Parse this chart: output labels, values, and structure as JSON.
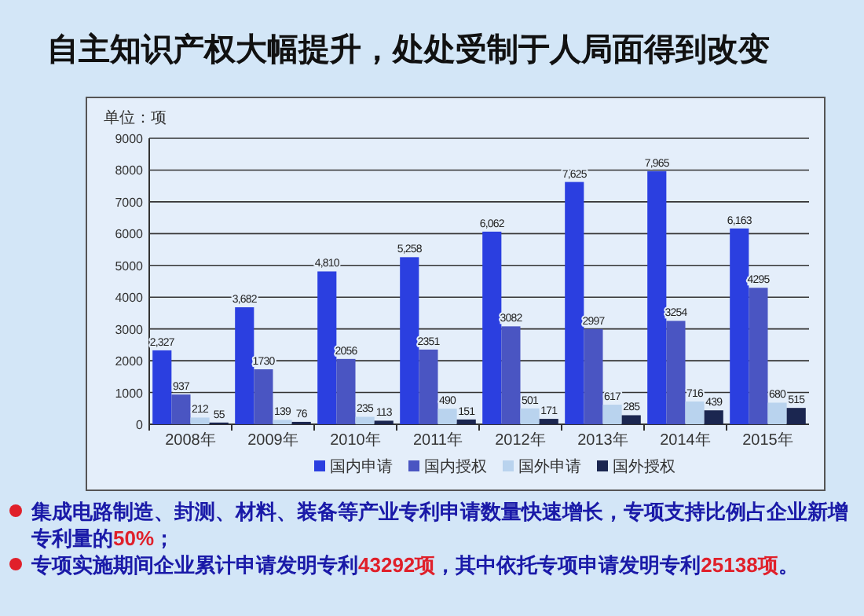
{
  "chart_data": {
    "type": "bar",
    "title": "自主知识产权大幅提升，处处受制于人局面得到改变",
    "categories": [
      "2008年",
      "2009年",
      "2010年",
      "2011年",
      "2012年",
      "2013年",
      "2014年",
      "2015年"
    ],
    "series": [
      {
        "name": "国内申请",
        "color": "#2b3fe0",
        "values": [
          2327,
          3682,
          4810,
          5258,
          6062,
          7625,
          7965,
          6163
        ],
        "value_labels": [
          "2,327",
          "3,682",
          "4,810",
          "5,258",
          "6,062",
          "7,625",
          "7,965",
          "6,163"
        ]
      },
      {
        "name": "国内授权",
        "color": "#4a55c2",
        "values": [
          937,
          1730,
          2056,
          2351,
          3082,
          2997,
          3254,
          4295
        ],
        "value_labels": [
          "937",
          "1730",
          "2056",
          "2351",
          "3082",
          "2997",
          "3254",
          "4295"
        ]
      },
      {
        "name": "国外申请",
        "color": "#b9d3ee",
        "values": [
          212,
          139,
          235,
          490,
          501,
          617,
          716,
          680
        ],
        "value_labels": [
          "212",
          "139",
          "235",
          "490",
          "501",
          "617",
          "716",
          "680"
        ]
      },
      {
        "name": "国外授权",
        "color": "#1b2650",
        "values": [
          55,
          76,
          113,
          151,
          171,
          285,
          439,
          515
        ],
        "value_labels": [
          "55",
          "76",
          "113",
          "151",
          "171",
          "285",
          "439",
          "515"
        ]
      }
    ],
    "ylim": [
      0,
      9000
    ],
    "yticks": [
      0,
      1000,
      2000,
      3000,
      4000,
      5000,
      6000,
      7000,
      8000,
      9000
    ],
    "grid": "y",
    "legend": "bottom",
    "annotations": [
      "单位：项",
      "集成电路制造、封测、材料、装备等产业专利申请数量快速增长，专项支持比例占企业新增专利量的50%；",
      "专项实施期间企业累计申请发明专利43292项，其中依托专项申请发明专利25138项。"
    ]
  }
}
